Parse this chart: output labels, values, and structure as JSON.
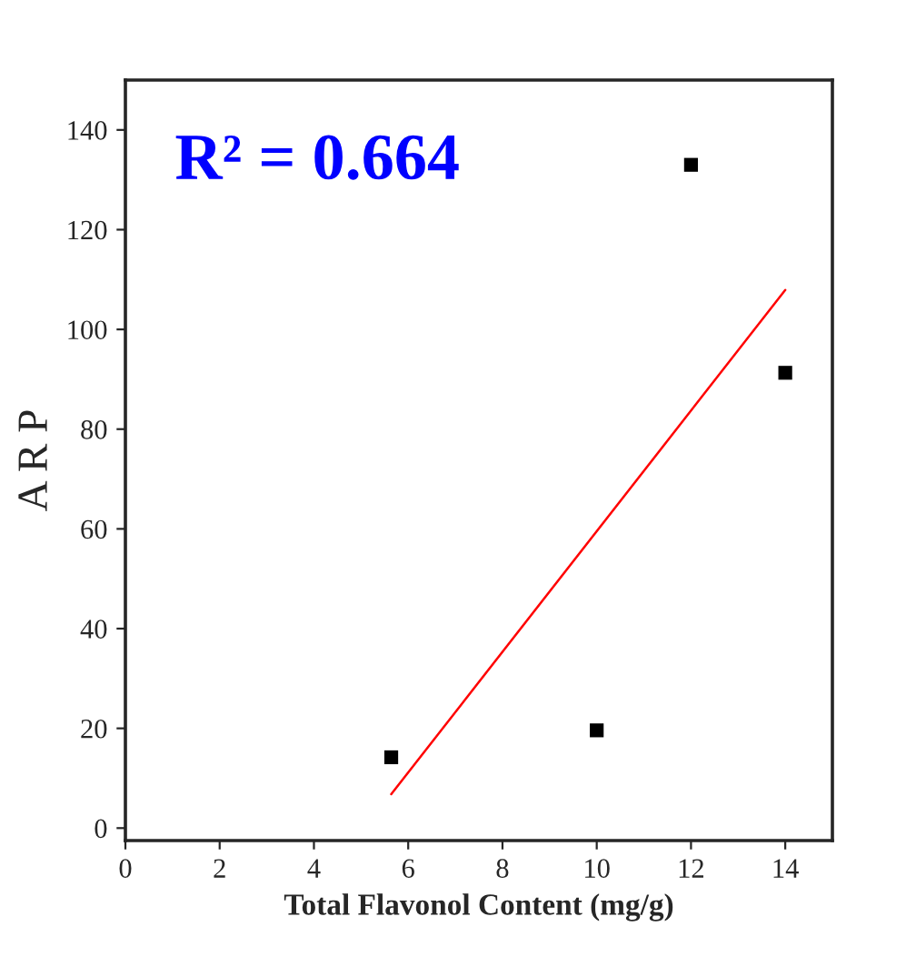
{
  "chart_data": {
    "type": "scatter",
    "xlabel": "Total Flavonol Content (mg/g)",
    "ylabel": "A R P",
    "xlim": [
      0,
      15
    ],
    "xticks": [
      0,
      2,
      4,
      6,
      8,
      10,
      12,
      14
    ],
    "ylim": [
      -2.5,
      150
    ],
    "yticks": [
      0,
      20,
      40,
      60,
      80,
      100,
      120,
      140
    ],
    "grid": false,
    "legend": false,
    "series": [
      {
        "marker": "square",
        "color": "#000000",
        "x": [
          5.64,
          10,
          12,
          14
        ],
        "values": [
          14.2,
          19.6,
          133,
          91.3
        ]
      },
      {
        "type": "line",
        "color": "#ff0000",
        "line_style": "solid",
        "x": [
          5.64,
          14
        ],
        "values": [
          6.8,
          107.9
        ]
      }
    ],
    "annotations": [
      "R² = 0.664"
    ]
  }
}
